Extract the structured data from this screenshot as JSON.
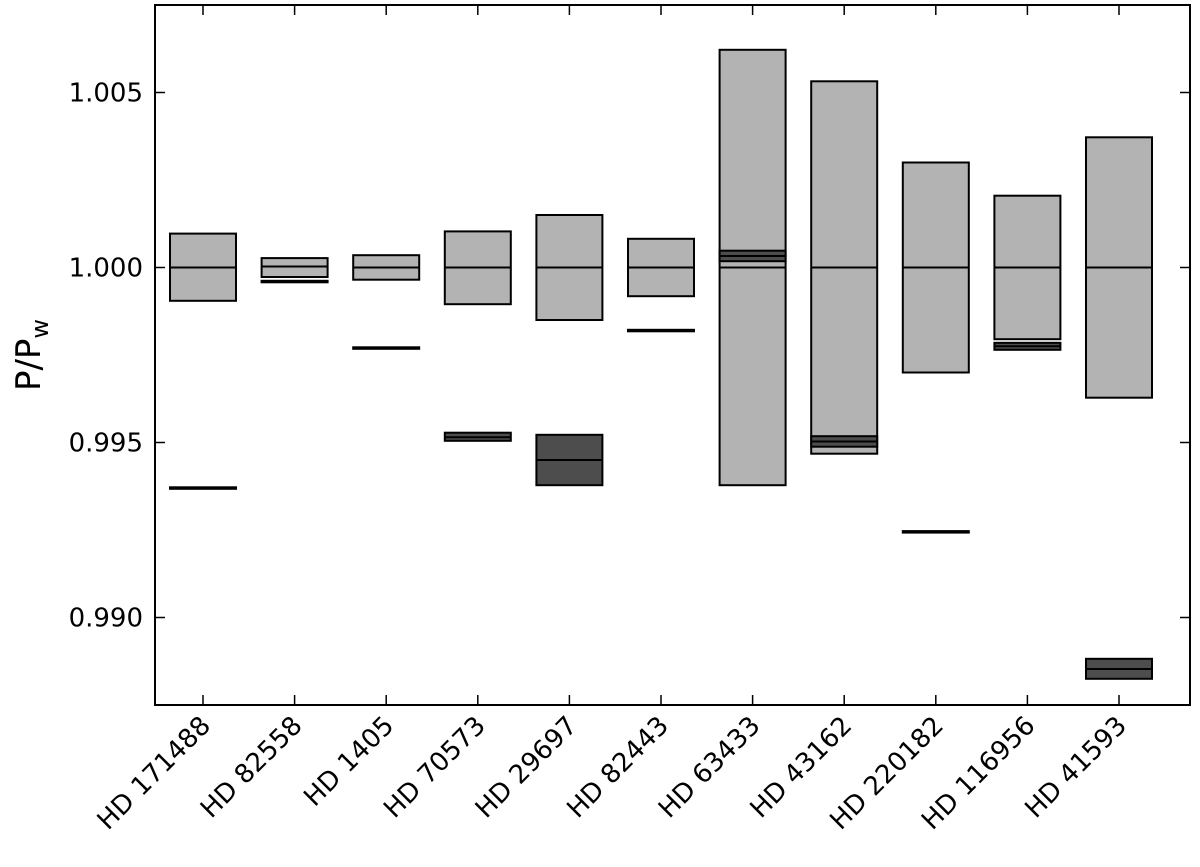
{
  "chart_data": {
    "type": "box",
    "ylabel": "P/P",
    "ylabel_subscript": "w",
    "xlabel": "",
    "title": "",
    "ylim": [
      0.9875,
      1.0075
    ],
    "yticks": [
      0.99,
      0.995,
      1.0,
      1.005
    ],
    "ytick_labels": [
      "0.990",
      "0.995",
      "1.000",
      "1.005"
    ],
    "grid": false,
    "categories": [
      "HD 171488",
      "HD 82558",
      "HD 1405",
      "HD 70573",
      "HD 29697",
      "HD 82443",
      "HD 63433",
      "HD 43162",
      "HD 220182",
      "HD 116956",
      "HD 41593"
    ],
    "series": [
      {
        "color": "#b3b3b3",
        "boxes": [
          {
            "low": 0.99905,
            "high": 1.00097,
            "mid": 1.0
          },
          {
            "low": 0.99973,
            "high": 1.00027,
            "mid": 1.00003
          },
          {
            "low": 0.99965,
            "high": 1.00035,
            "mid": 1.0
          },
          {
            "low": 0.99895,
            "high": 1.00103,
            "mid": 1.0
          },
          {
            "low": 0.9985,
            "high": 1.0015,
            "mid": 1.0
          },
          {
            "low": 0.99918,
            "high": 1.00082,
            "mid": 1.0
          },
          {
            "low": 0.99378,
            "high": 1.00622,
            "mid": 1.0
          },
          {
            "low": 0.99468,
            "high": 1.00532,
            "mid": 1.0
          },
          {
            "low": 0.997,
            "high": 1.003,
            "mid": 1.0
          },
          {
            "low": 0.99795,
            "high": 1.00205,
            "mid": 1.0
          },
          {
            "low": 0.99628,
            "high": 1.00372,
            "mid": 1.0
          }
        ]
      },
      {
        "color": "#4d4d4d",
        "boxes": [
          {
            "low": 0.99368,
            "high": 0.99372,
            "mid": 0.9937
          },
          {
            "low": 0.99958,
            "high": 0.99962,
            "mid": 0.9996
          },
          {
            "low": 0.99768,
            "high": 0.99772,
            "mid": 0.9977
          },
          {
            "low": 0.99505,
            "high": 0.99528,
            "mid": 0.99515
          },
          {
            "low": 0.99378,
            "high": 0.99522,
            "mid": 0.9945
          },
          {
            "low": 0.99818,
            "high": 0.99822,
            "mid": 0.9982
          },
          {
            "low": 1.00018,
            "high": 1.00048,
            "mid": 1.00033
          },
          {
            "low": 0.99488,
            "high": 0.99518,
            "mid": 0.99503
          },
          {
            "low": 0.99243,
            "high": 0.99247,
            "mid": 0.99245
          },
          {
            "low": 0.99765,
            "high": 0.99785,
            "mid": 0.99775
          },
          {
            "low": 0.98825,
            "high": 0.98882,
            "mid": 0.98853
          }
        ]
      }
    ]
  }
}
